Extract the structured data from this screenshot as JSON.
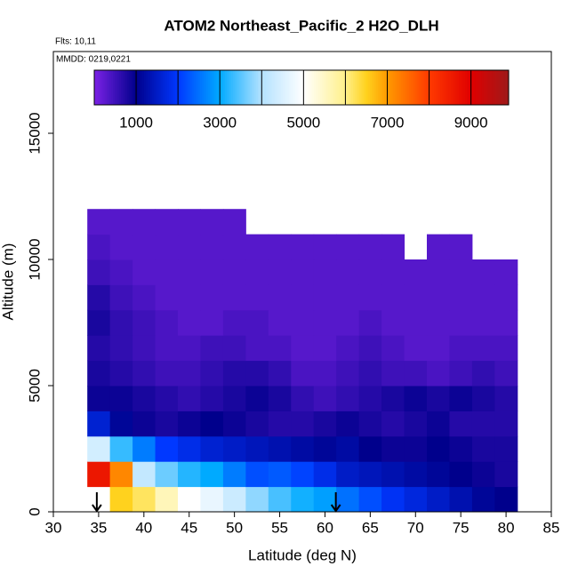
{
  "chart_data": {
    "type": "heatmap",
    "title": "ATOM2 Northeast_Pacific_2 H2O_DLH",
    "flights_label": "Flts: 10,11",
    "date_label": "MMDD: 0219,0221",
    "xlabel": "Latitude (deg N)",
    "ylabel": "Altitude (m)",
    "xlim": [
      30,
      85
    ],
    "xticks": [
      30,
      35,
      40,
      45,
      50,
      55,
      60,
      65,
      70,
      75,
      80,
      85
    ],
    "ylim": [
      0,
      18240
    ],
    "yticks": [
      0,
      5000,
      10000,
      15000
    ],
    "x": [
      35,
      37.5,
      40,
      42.5,
      45,
      47.5,
      50,
      52.5,
      55,
      57.5,
      60,
      62.5,
      65,
      67.5,
      70,
      72.5,
      75,
      77.5,
      80
    ],
    "y": [
      500,
      1500,
      2500,
      3500,
      4500,
      5500,
      6500,
      7500,
      8500,
      9500,
      10500,
      11500
    ],
    "values": [
      [
        null,
        6500,
        6200,
        5600,
        5000,
        4700,
        4300,
        3800,
        3400,
        3100,
        2900,
        2500,
        2200,
        1900,
        1700,
        1500,
        1300,
        1100,
        1000
      ],
      [
        8600,
        7200,
        4200,
        3600,
        3200,
        3000,
        2600,
        2200,
        2300,
        2100,
        1800,
        1500,
        1400,
        1300,
        1200,
        1100,
        1000,
        900,
        800
      ],
      [
        4400,
        3300,
        2600,
        2000,
        1800,
        1600,
        1500,
        1400,
        1300,
        1200,
        1100,
        1200,
        1000,
        900,
        900,
        1000,
        900,
        800,
        800
      ],
      [
        1600,
        1100,
        900,
        800,
        900,
        1000,
        900,
        800,
        700,
        700,
        800,
        900,
        800,
        700,
        800,
        900,
        700,
        700,
        700
      ],
      [
        900,
        900,
        800,
        700,
        600,
        700,
        800,
        900,
        800,
        600,
        500,
        600,
        700,
        800,
        900,
        800,
        900,
        800,
        700
      ],
      [
        800,
        700,
        600,
        500,
        500,
        600,
        700,
        700,
        600,
        400,
        400,
        500,
        600,
        500,
        500,
        400,
        500,
        600,
        500
      ],
      [
        700,
        600,
        500,
        400,
        400,
        500,
        500,
        400,
        400,
        300,
        300,
        400,
        500,
        400,
        300,
        300,
        400,
        400,
        400
      ],
      [
        800,
        600,
        500,
        400,
        300,
        300,
        400,
        400,
        300,
        300,
        300,
        300,
        400,
        300,
        300,
        300,
        300,
        300,
        300
      ],
      [
        700,
        500,
        400,
        300,
        300,
        300,
        300,
        300,
        300,
        300,
        300,
        300,
        300,
        300,
        300,
        300,
        300,
        300,
        300
      ],
      [
        500,
        400,
        300,
        300,
        300,
        300,
        300,
        300,
        300,
        300,
        300,
        300,
        300,
        300,
        300,
        300,
        300,
        300,
        300
      ],
      [
        400,
        300,
        300,
        300,
        300,
        300,
        300,
        300,
        300,
        300,
        300,
        300,
        300,
        300,
        null,
        300,
        300,
        null,
        null
      ],
      [
        300,
        300,
        300,
        300,
        300,
        300,
        300,
        null,
        null,
        null,
        null,
        null,
        null,
        null,
        null,
        null,
        null,
        null,
        null
      ]
    ],
    "colorbar": {
      "lim": [
        0,
        9900
      ],
      "ticks": [
        1000,
        3000,
        5000,
        7000,
        9000
      ],
      "minor_ticks": [
        2000,
        4000,
        6000,
        8000
      ]
    },
    "colorscale": [
      {
        "value": 0,
        "color": "#7b22e6"
      },
      {
        "value": 1000,
        "color": "#00008c"
      },
      {
        "value": 2000,
        "color": "#0038ff"
      },
      {
        "value": 3000,
        "color": "#00aaff"
      },
      {
        "value": 4000,
        "color": "#b4e2ff"
      },
      {
        "value": 5000,
        "color": "#ffffff"
      },
      {
        "value": 6000,
        "color": "#fff08a"
      },
      {
        "value": 6500,
        "color": "#ffd21e"
      },
      {
        "value": 7000,
        "color": "#ff9a00"
      },
      {
        "value": 8000,
        "color": "#ff3a00"
      },
      {
        "value": 9000,
        "color": "#e00000"
      },
      {
        "value": 9900,
        "color": "#9e1a1a"
      }
    ],
    "arrows_x": [
      34.8,
      61.2
    ]
  }
}
